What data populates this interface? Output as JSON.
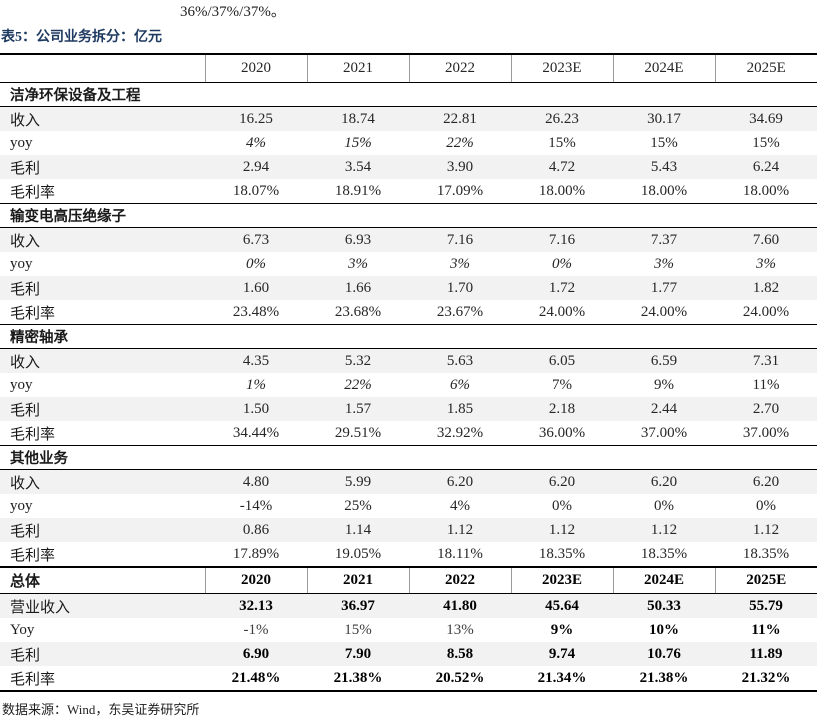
{
  "page": {
    "intro_text": "36%/37%/37%。",
    "table_title": "表5：公司业务拆分：亿元",
    "source_note": "数据来源：Wind，东吴证券研究所"
  },
  "colors": {
    "title_navy": "#1e3a60",
    "row_shade": "#f2f2f2",
    "border_black": "#000000"
  },
  "table": {
    "unit_columns": [
      "2020",
      "2021",
      "2022",
      "2023E",
      "2024E",
      "2025E"
    ],
    "sections": [
      {
        "name": "洁净环保设备及工程",
        "rows": [
          {
            "label": "收入",
            "shaded": true,
            "styles": [
              "n",
              "n",
              "n",
              "n",
              "n",
              "n"
            ],
            "values": [
              "16.25",
              "18.74",
              "22.81",
              "26.23",
              "30.17",
              "34.69"
            ]
          },
          {
            "label": "yoy",
            "shaded": false,
            "styles": [
              "i",
              "i",
              "i",
              "n",
              "n",
              "n"
            ],
            "values": [
              "4%",
              "15%",
              "22%",
              "15%",
              "15%",
              "15%"
            ]
          },
          {
            "label": "毛利",
            "shaded": true,
            "styles": [
              "n",
              "n",
              "n",
              "n",
              "n",
              "n"
            ],
            "values": [
              "2.94",
              "3.54",
              "3.90",
              "4.72",
              "5.43",
              "6.24"
            ]
          },
          {
            "label": "毛利率",
            "shaded": false,
            "styles": [
              "n",
              "n",
              "n",
              "n",
              "n",
              "n"
            ],
            "values": [
              "18.07%",
              "18.91%",
              "17.09%",
              "18.00%",
              "18.00%",
              "18.00%"
            ]
          }
        ]
      },
      {
        "name": "输变电高压绝缘子",
        "rows": [
          {
            "label": "收入",
            "shaded": true,
            "styles": [
              "n",
              "n",
              "n",
              "n",
              "n",
              "n"
            ],
            "values": [
              "6.73",
              "6.93",
              "7.16",
              "7.16",
              "7.37",
              "7.60"
            ]
          },
          {
            "label": "yoy",
            "shaded": false,
            "styles": [
              "i",
              "i",
              "i",
              "i",
              "i",
              "i"
            ],
            "values": [
              "0%",
              "3%",
              "3%",
              "0%",
              "3%",
              "3%"
            ]
          },
          {
            "label": "毛利",
            "shaded": true,
            "styles": [
              "n",
              "n",
              "n",
              "n",
              "n",
              "n"
            ],
            "values": [
              "1.60",
              "1.66",
              "1.70",
              "1.72",
              "1.77",
              "1.82"
            ]
          },
          {
            "label": "毛利率",
            "shaded": false,
            "styles": [
              "n",
              "n",
              "n",
              "n",
              "n",
              "n"
            ],
            "values": [
              "23.48%",
              "23.68%",
              "23.67%",
              "24.00%",
              "24.00%",
              "24.00%"
            ]
          }
        ]
      },
      {
        "name": "精密轴承",
        "rows": [
          {
            "label": "收入",
            "shaded": true,
            "styles": [
              "n",
              "n",
              "n",
              "n",
              "n",
              "n"
            ],
            "values": [
              "4.35",
              "5.32",
              "5.63",
              "6.05",
              "6.59",
              "7.31"
            ]
          },
          {
            "label": "yoy",
            "shaded": false,
            "styles": [
              "i",
              "i",
              "i",
              "n",
              "n",
              "n"
            ],
            "values": [
              "1%",
              "22%",
              "6%",
              "7%",
              "9%",
              "11%"
            ]
          },
          {
            "label": "毛利",
            "shaded": true,
            "styles": [
              "n",
              "n",
              "n",
              "n",
              "n",
              "n"
            ],
            "values": [
              "1.50",
              "1.57",
              "1.85",
              "2.18",
              "2.44",
              "2.70"
            ]
          },
          {
            "label": "毛利率",
            "shaded": false,
            "styles": [
              "n",
              "n",
              "n",
              "n",
              "n",
              "n"
            ],
            "values": [
              "34.44%",
              "29.51%",
              "32.92%",
              "36.00%",
              "37.00%",
              "37.00%"
            ]
          }
        ]
      },
      {
        "name": "其他业务",
        "rows": [
          {
            "label": "收入",
            "shaded": true,
            "styles": [
              "n",
              "n",
              "n",
              "n",
              "n",
              "n"
            ],
            "values": [
              "4.80",
              "5.99",
              "6.20",
              "6.20",
              "6.20",
              "6.20"
            ]
          },
          {
            "label": "yoy",
            "shaded": false,
            "styles": [
              "n",
              "n",
              "n",
              "n",
              "n",
              "n"
            ],
            "values": [
              "-14%",
              "25%",
              "4%",
              "0%",
              "0%",
              "0%"
            ]
          },
          {
            "label": "毛利",
            "shaded": true,
            "styles": [
              "n",
              "n",
              "n",
              "n",
              "n",
              "n"
            ],
            "values": [
              "0.86",
              "1.14",
              "1.12",
              "1.12",
              "1.12",
              "1.12"
            ]
          },
          {
            "label": "毛利率",
            "shaded": false,
            "styles": [
              "n",
              "n",
              "n",
              "n",
              "n",
              "n"
            ],
            "values": [
              "17.89%",
              "19.05%",
              "18.11%",
              "18.35%",
              "18.35%",
              "18.35%"
            ]
          }
        ]
      }
    ],
    "total": {
      "name": "总体",
      "columns": [
        "2020",
        "2021",
        "2022",
        "2023E",
        "2024E",
        "2025E"
      ],
      "rows": [
        {
          "label": "营业收入",
          "shaded": true,
          "styles": [
            "b",
            "b",
            "b",
            "b",
            "b",
            "b"
          ],
          "values": [
            "32.13",
            "36.97",
            "41.80",
            "45.64",
            "50.33",
            "55.79"
          ]
        },
        {
          "label": "Yoy",
          "shaded": false,
          "styles": [
            "n",
            "n",
            "n",
            "b",
            "b",
            "b"
          ],
          "values": [
            "-1%",
            "15%",
            "13%",
            "9%",
            "10%",
            "11%"
          ]
        },
        {
          "label": "毛利",
          "shaded": true,
          "styles": [
            "b",
            "b",
            "b",
            "b",
            "b",
            "b"
          ],
          "values": [
            "6.90",
            "7.90",
            "8.58",
            "9.74",
            "10.76",
            "11.89"
          ]
        },
        {
          "label": "毛利率",
          "shaded": false,
          "styles": [
            "b",
            "b",
            "b",
            "b",
            "b",
            "b"
          ],
          "values": [
            "21.48%",
            "21.38%",
            "20.52%",
            "21.34%",
            "21.38%",
            "21.32%"
          ]
        }
      ]
    }
  }
}
